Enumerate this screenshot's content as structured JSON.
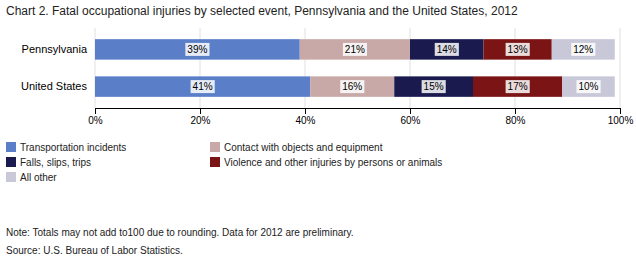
{
  "chart_data": {
    "type": "bar",
    "orientation": "horizontal",
    "stacked": true,
    "title": "Chart 2. Fatal occupational injuries by selected event, Pennsylvania and the United States, 2012",
    "categories": [
      "Pennsylvania",
      "United States"
    ],
    "series": [
      {
        "name": "Transportation incidents",
        "color": "#5B7EC9",
        "values": [
          39,
          41
        ],
        "value_labels": [
          "39%",
          "41%"
        ]
      },
      {
        "name": "Contact with objects and equipment",
        "color": "#C9A8A8",
        "values": [
          21,
          16
        ],
        "value_labels": [
          "21%",
          "16%"
        ]
      },
      {
        "name": "Falls, slips, trips",
        "color": "#1A1A4E",
        "values": [
          14,
          15
        ],
        "value_labels": [
          "14%",
          "15%"
        ]
      },
      {
        "name": "Violence and other injuries by persons or animals",
        "color": "#7B1515",
        "values": [
          13,
          17
        ],
        "value_labels": [
          "13%",
          "17%"
        ]
      },
      {
        "name": "All other",
        "color": "#C8C8D8",
        "values": [
          12,
          10
        ],
        "value_labels": [
          "12%",
          "10%"
        ]
      }
    ],
    "xlim": [
      0,
      100
    ],
    "xticks": [
      {
        "value": 0,
        "label": "0%"
      },
      {
        "value": 20,
        "label": "20%"
      },
      {
        "value": 40,
        "label": "40%"
      },
      {
        "value": 60,
        "label": "60%"
      },
      {
        "value": 80,
        "label": "80%"
      },
      {
        "value": 100,
        "label": "100%"
      }
    ],
    "grid": true,
    "data_labels": true,
    "legend": "bottom",
    "annotations": [
      "Note: Totals may not add to100 due to rounding. Data for 2012 are preliminary.",
      "Source: U.S. Bureau of Labor Statistics."
    ]
  }
}
